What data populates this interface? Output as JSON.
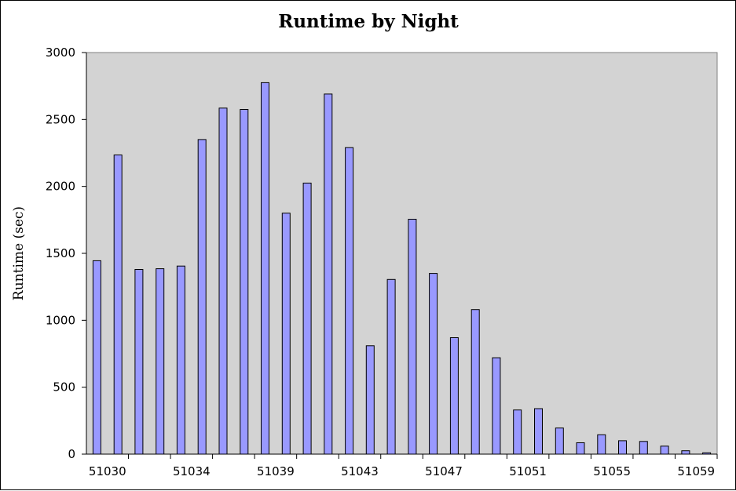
{
  "chart_data": {
    "type": "bar",
    "title": "Runtime by Night",
    "xlabel": "",
    "ylabel": "Runtime (sec)",
    "ylim": [
      0,
      3000
    ],
    "yticks": [
      "0",
      "500",
      "1000",
      "1500",
      "2000",
      "2500",
      "3000"
    ],
    "xtick_labels": [
      "51030",
      "51034",
      "51039",
      "51043",
      "51047",
      "51051",
      "51055",
      "51059"
    ],
    "grid": false,
    "plot_background": "#d3d3d3",
    "bar_color": "#9999ff",
    "values": [
      1445,
      2235,
      1380,
      1385,
      1405,
      2350,
      2585,
      2575,
      2775,
      1800,
      2025,
      2690,
      2290,
      810,
      1305,
      1755,
      1350,
      870,
      1080,
      720,
      330,
      340,
      195,
      85,
      145,
      100,
      95,
      60,
      25,
      10
    ]
  }
}
